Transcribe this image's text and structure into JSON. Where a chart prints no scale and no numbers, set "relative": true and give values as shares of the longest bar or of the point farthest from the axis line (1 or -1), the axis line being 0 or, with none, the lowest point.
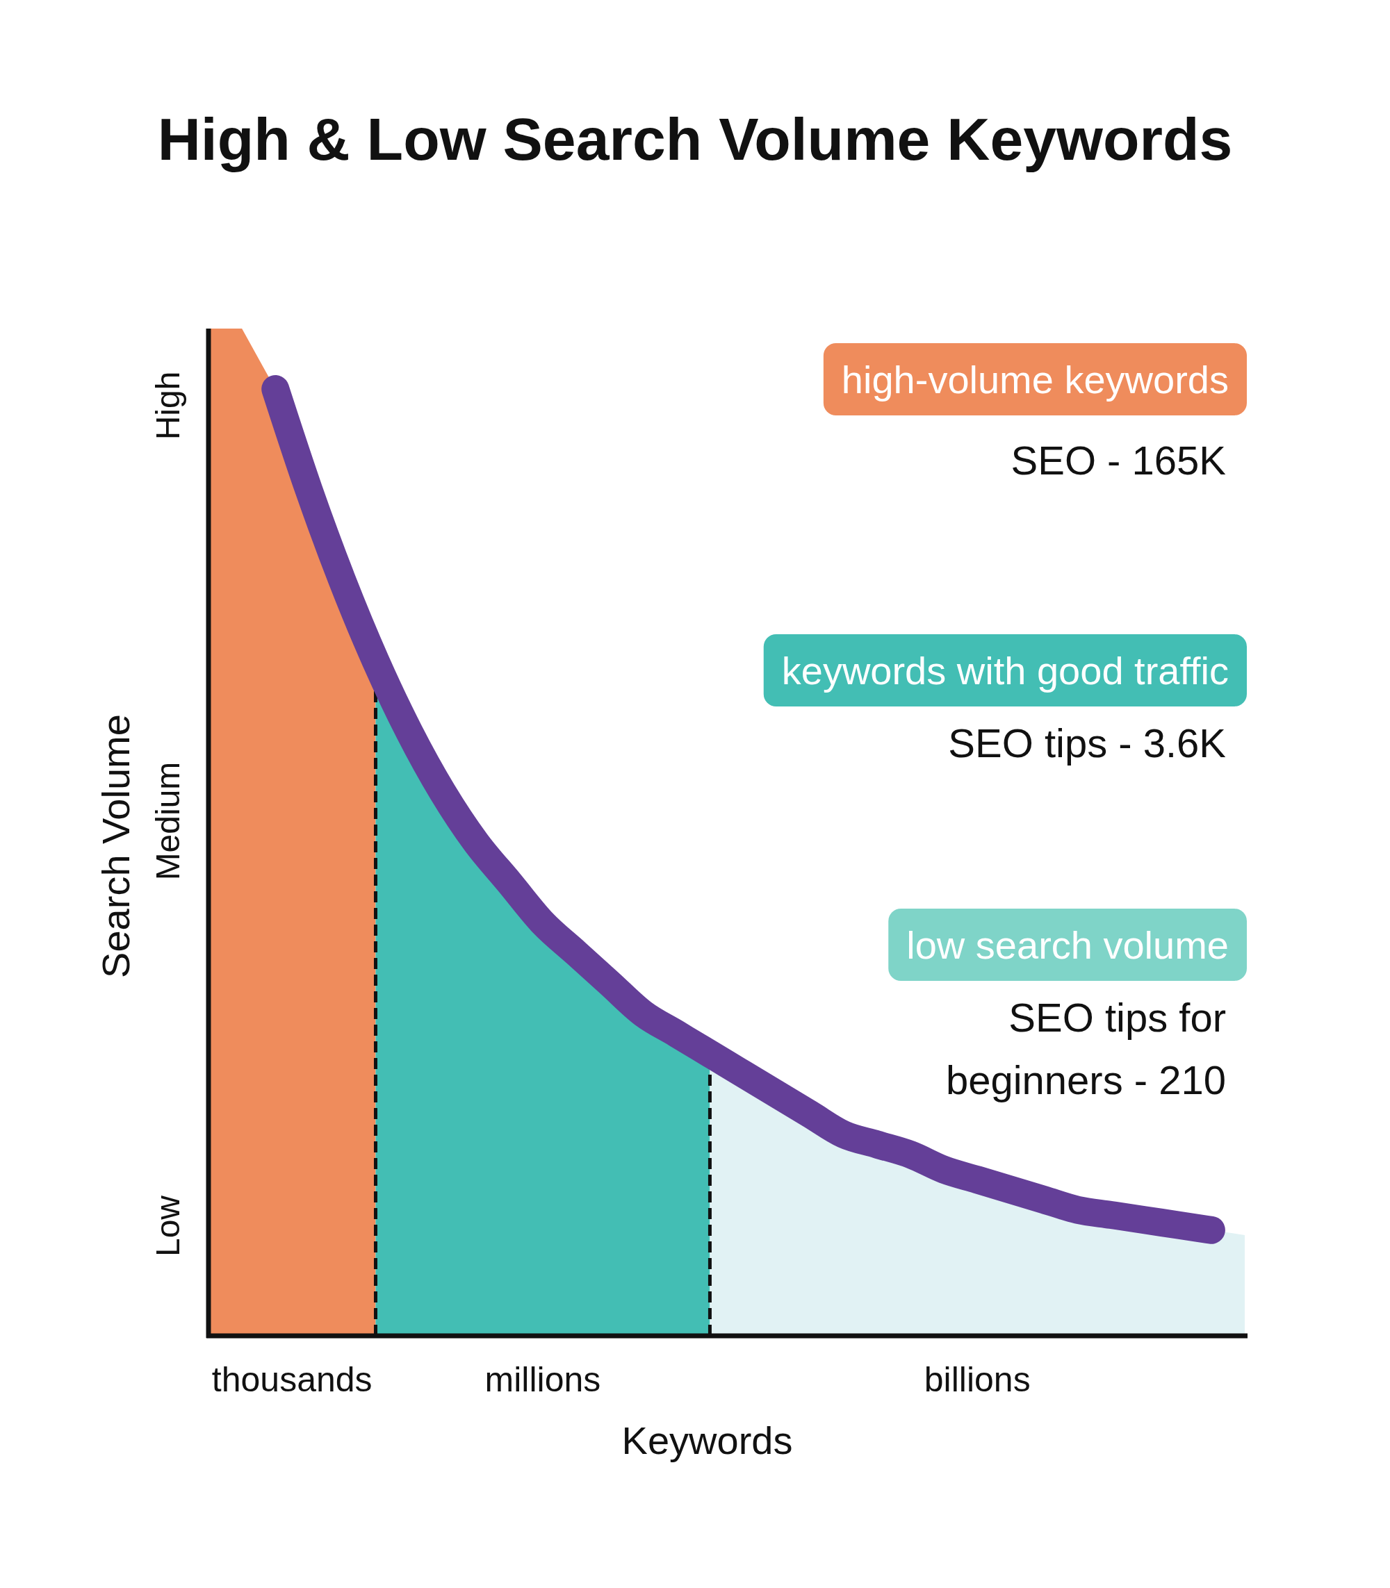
{
  "chart_data": {
    "type": "area",
    "title": "High & Low Search Volume Keywords",
    "xlabel": "Keywords",
    "ylabel": "Search Volume",
    "relative": true,
    "categories": [
      null,
      null,
      null,
      null,
      null,
      null,
      null,
      null,
      null,
      null,
      null,
      null,
      null,
      null,
      null,
      null,
      null,
      null,
      null,
      null,
      null,
      null,
      null,
      null,
      null,
      null,
      null,
      null,
      null,
      null,
      null,
      null
    ],
    "series": [
      {
        "color": "#ef8c5c",
        "values": [
          1.0,
          1.0,
          0.94,
          0.84,
          0.75,
          0.67,
          null,
          null,
          null,
          null,
          null,
          null,
          null,
          null,
          null,
          null,
          null,
          null,
          null,
          null,
          null,
          null,
          null,
          null,
          null,
          null,
          null,
          null,
          null,
          null,
          null,
          null
        ]
      },
      {
        "color": "#43beb4",
        "values": [
          null,
          null,
          null,
          null,
          null,
          0.67,
          0.6,
          0.54,
          0.49,
          0.45,
          0.41,
          0.38,
          0.35,
          0.32,
          0.3,
          0.28,
          null,
          null,
          null,
          null,
          null,
          null,
          null,
          null,
          null,
          null,
          null,
          null,
          null,
          null,
          null,
          null
        ]
      },
      {
        "color": "#e1f2f4",
        "values": [
          null,
          null,
          null,
          null,
          null,
          null,
          null,
          null,
          null,
          null,
          null,
          null,
          null,
          null,
          null,
          0.28,
          0.26,
          0.24,
          0.22,
          0.2,
          0.19,
          0.18,
          0.165,
          0.155,
          0.145,
          0.135,
          0.125,
          0.12,
          0.115,
          0.11,
          0.105,
          0.1
        ]
      },
      {
        "type": "line",
        "color": "#643f98",
        "values": [
          null,
          null,
          0.94,
          0.84,
          0.75,
          0.67,
          0.6,
          0.54,
          0.49,
          0.45,
          0.41,
          0.38,
          0.35,
          0.32,
          0.3,
          0.28,
          0.26,
          0.24,
          0.22,
          0.2,
          0.19,
          0.18,
          0.165,
          0.155,
          0.145,
          0.135,
          0.125,
          0.12,
          0.115,
          0.11,
          0.105,
          null
        ]
      }
    ],
    "annotations": [
      "High",
      "Medium",
      "Low",
      "thousands",
      "millions",
      "billions",
      "high-volume keywords",
      "SEO - 165K",
      "keywords with good traffic",
      "SEO tips - 3.6K",
      "low search volume",
      "SEO tips for beginners - 210"
    ]
  }
}
